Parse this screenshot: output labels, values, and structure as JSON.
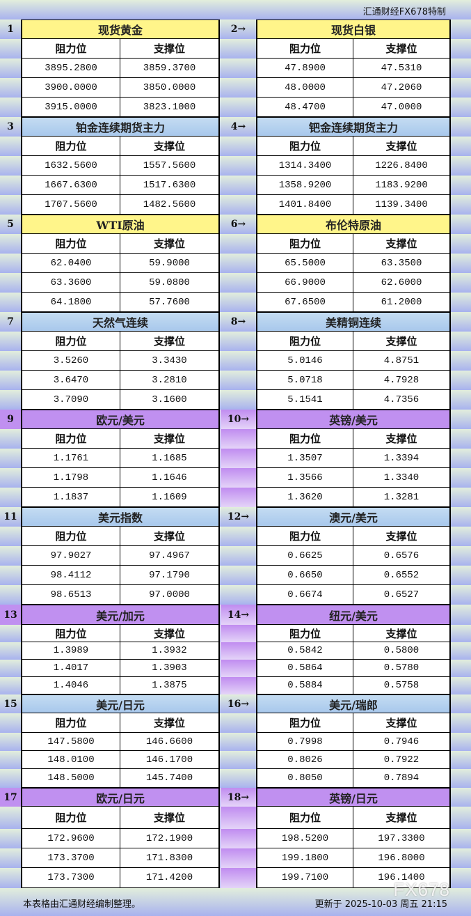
{
  "header": {
    "credit": "汇通财经FX678特制"
  },
  "columns": {
    "resistance": "阻力位",
    "support": "支撑位"
  },
  "colors": {
    "yellow": "#fff58a",
    "blue": "#c4dcf2",
    "purple": "#c090f0"
  },
  "blocks": [
    {
      "theme": "yellow",
      "left": {
        "index": "1",
        "title": "现货黄金",
        "rows": [
          [
            "3895.2800",
            "3859.3700"
          ],
          [
            "3900.0000",
            "3850.0000"
          ],
          [
            "3915.0000",
            "3823.1000"
          ]
        ]
      },
      "right": {
        "index": "2→",
        "title": "现货白银",
        "rows": [
          [
            "47.8900",
            "47.5310"
          ],
          [
            "48.0000",
            "47.2060"
          ],
          [
            "48.4700",
            "47.0000"
          ]
        ]
      }
    },
    {
      "theme": "blue",
      "left": {
        "index": "3",
        "title": "铂金连续期货主力",
        "rows": [
          [
            "1632.5600",
            "1557.5600"
          ],
          [
            "1667.6300",
            "1517.6300"
          ],
          [
            "1707.5600",
            "1482.5600"
          ]
        ]
      },
      "right": {
        "index": "4→",
        "title": "钯金连续期货主力",
        "rows": [
          [
            "1314.3400",
            "1226.8400"
          ],
          [
            "1358.9200",
            "1183.9200"
          ],
          [
            "1401.8400",
            "1139.3400"
          ]
        ]
      }
    },
    {
      "theme": "yellow",
      "left": {
        "index": "5",
        "title": "WTI原油",
        "rows": [
          [
            "62.0400",
            "59.9000"
          ],
          [
            "63.3600",
            "59.0800"
          ],
          [
            "64.1800",
            "57.7600"
          ]
        ]
      },
      "right": {
        "index": "6→",
        "title": "布伦特原油",
        "rows": [
          [
            "65.5000",
            "63.3500"
          ],
          [
            "66.9000",
            "62.6000"
          ],
          [
            "67.6500",
            "61.2000"
          ]
        ]
      }
    },
    {
      "theme": "blue",
      "left": {
        "index": "7",
        "title": "天然气连续",
        "rows": [
          [
            "3.5260",
            "3.3430"
          ],
          [
            "3.6470",
            "3.2810"
          ],
          [
            "3.7090",
            "3.1600"
          ]
        ]
      },
      "right": {
        "index": "8→",
        "title": "美精铜连续",
        "rows": [
          [
            "5.0146",
            "4.8751"
          ],
          [
            "5.0718",
            "4.7928"
          ],
          [
            "5.1541",
            "4.7356"
          ]
        ]
      }
    },
    {
      "theme": "purple",
      "left": {
        "index": "9",
        "title": "欧元/美元",
        "rows": [
          [
            "1.1761",
            "1.1685"
          ],
          [
            "1.1798",
            "1.1646"
          ],
          [
            "1.1837",
            "1.1609"
          ]
        ]
      },
      "right": {
        "index": "10→",
        "title": "英镑/美元",
        "rows": [
          [
            "1.3507",
            "1.3394"
          ],
          [
            "1.3566",
            "1.3340"
          ],
          [
            "1.3620",
            "1.3281"
          ]
        ]
      }
    },
    {
      "theme": "blue",
      "left": {
        "index": "11",
        "title": "美元指数",
        "rows": [
          [
            "97.9027",
            "97.4967"
          ],
          [
            "98.4112",
            "97.1790"
          ],
          [
            "98.6513",
            "97.0000"
          ]
        ]
      },
      "right": {
        "index": "12→",
        "title": "澳元/美元",
        "rows": [
          [
            "0.6625",
            "0.6576"
          ],
          [
            "0.6650",
            "0.6552"
          ],
          [
            "0.6674",
            "0.6527"
          ]
        ]
      }
    },
    {
      "theme": "purple",
      "left": {
        "index": "13",
        "title": "美元/加元",
        "rows": [
          [
            "1.3989",
            "1.3932"
          ],
          [
            "1.4017",
            "1.3903"
          ],
          [
            "1.4046",
            "1.3875"
          ]
        ]
      },
      "right": {
        "index": "14→",
        "title": "纽元/美元",
        "rows": [
          [
            "0.5842",
            "0.5800"
          ],
          [
            "0.5864",
            "0.5780"
          ],
          [
            "0.5884",
            "0.5758"
          ]
        ]
      }
    },
    {
      "theme": "blue",
      "left": {
        "index": "15",
        "title": "美元/日元",
        "rows": [
          [
            "147.5800",
            "146.6600"
          ],
          [
            "148.0100",
            "146.1700"
          ],
          [
            "148.5000",
            "145.7400"
          ]
        ]
      },
      "right": {
        "index": "16→",
        "title": "美元/瑞郎",
        "rows": [
          [
            "0.7998",
            "0.7946"
          ],
          [
            "0.8026",
            "0.7922"
          ],
          [
            "0.8050",
            "0.7894"
          ]
        ]
      }
    },
    {
      "theme": "purple",
      "left": {
        "index": "17",
        "title": "欧元/日元",
        "rows": [
          [
            "172.9600",
            "172.1900"
          ],
          [
            "173.3700",
            "171.8300"
          ],
          [
            "173.7300",
            "171.4200"
          ]
        ]
      },
      "right": {
        "index": "18→",
        "title": "英镑/日元",
        "rows": [
          [
            "198.5200",
            "197.3300"
          ],
          [
            "199.1800",
            "196.8000"
          ],
          [
            "199.7100",
            "196.1400"
          ]
        ]
      }
    }
  ],
  "footer": {
    "note": "本表格由汇通财经编制整理。",
    "updated": "更新于 2025-10-03 周五 21:15",
    "watermark": "FX678"
  }
}
